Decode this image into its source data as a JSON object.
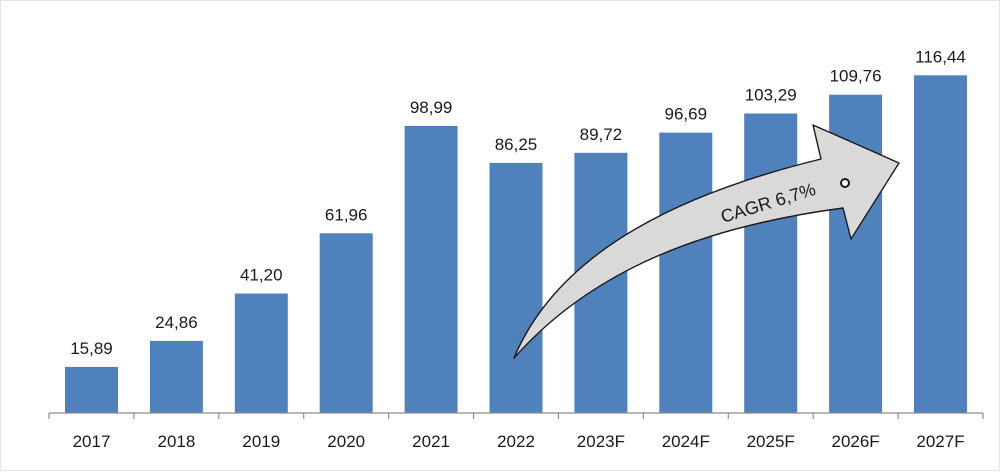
{
  "chart_data": {
    "type": "bar",
    "categories": [
      "2017",
      "2018",
      "2019",
      "2020",
      "2021",
      "2022",
      "2023F",
      "2024F",
      "2025F",
      "2026F",
      "2027F"
    ],
    "values": [
      15.89,
      24.86,
      41.2,
      61.96,
      98.99,
      86.25,
      89.72,
      96.69,
      103.29,
      109.76,
      116.44
    ],
    "data_labels": [
      "15,89",
      "24,86",
      "41,20",
      "61,96",
      "98,99",
      "86,25",
      "89,72",
      "96,69",
      "103,29",
      "109,76",
      "116,44"
    ],
    "title": "",
    "xlabel": "",
    "ylabel": "",
    "ylim": [
      0,
      120
    ],
    "grid": false,
    "legend": "none",
    "bar_color": "#4f81bd",
    "annotation": {
      "text": "CAGR 6,7%",
      "shape": "curved-arrow",
      "fill": "#d9d9d9",
      "stroke": "#1a1a1a"
    }
  }
}
